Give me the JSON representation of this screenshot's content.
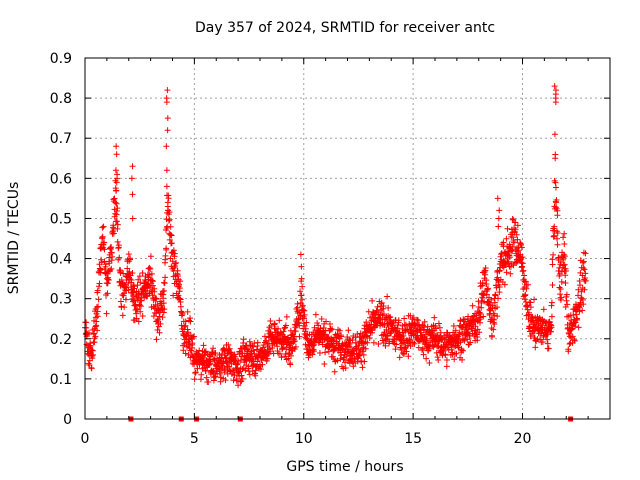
{
  "chart_data": {
    "type": "scatter",
    "title": "Day 357 of 2024, SRMTID for receiver antc",
    "xlabel": "GPS time / hours",
    "ylabel": "SRMTID / TECUs",
    "xlim": [
      0,
      24
    ],
    "ylim": [
      0,
      0.9
    ],
    "xticks": [
      0,
      5,
      10,
      15,
      20
    ],
    "xtick_labels": [
      "0",
      "5",
      "10",
      "15",
      "20"
    ],
    "yticks": [
      0,
      0.1,
      0.2,
      0.3,
      0.4,
      0.5,
      0.6,
      0.7,
      0.8,
      0.9
    ],
    "ytick_labels": [
      "0",
      "0.1",
      "0.2",
      "0.3",
      "0.4",
      "0.5",
      "0.6",
      "0.7",
      "0.8",
      "0.9"
    ],
    "grid": true,
    "marker": "+",
    "color": "#ff0000",
    "data_gap_markers_hours": [
      2.1,
      4.4,
      5.1,
      7.1,
      22.2
    ],
    "trend_hours": [
      0,
      0.3,
      0.6,
      0.8,
      1.0,
      1.2,
      1.4,
      1.6,
      1.8,
      2.0,
      2.2,
      2.5,
      2.8,
      3.0,
      3.3,
      3.6,
      3.8,
      4.0,
      4.2,
      4.5,
      4.8,
      5.0,
      5.5,
      6.0,
      6.5,
      7.0,
      7.5,
      8.0,
      8.5,
      9.0,
      9.5,
      9.9,
      10.2,
      10.6,
      11.0,
      11.5,
      12.0,
      12.5,
      13.0,
      13.5,
      14.0,
      14.5,
      15.0,
      15.5,
      16.0,
      16.5,
      17.0,
      17.5,
      18.0,
      18.3,
      18.6,
      19.0,
      19.4,
      19.7,
      20.0,
      20.3,
      20.6,
      21.0,
      21.3,
      21.5,
      21.7,
      21.9,
      22.1,
      22.4,
      22.7,
      22.9
    ],
    "trend_srmtid": [
      0.22,
      0.15,
      0.3,
      0.47,
      0.32,
      0.42,
      0.58,
      0.35,
      0.3,
      0.38,
      0.3,
      0.3,
      0.33,
      0.36,
      0.25,
      0.3,
      0.55,
      0.38,
      0.37,
      0.22,
      0.2,
      0.15,
      0.14,
      0.13,
      0.15,
      0.13,
      0.16,
      0.15,
      0.2,
      0.2,
      0.18,
      0.3,
      0.17,
      0.22,
      0.2,
      0.18,
      0.18,
      0.17,
      0.22,
      0.25,
      0.22,
      0.2,
      0.22,
      0.2,
      0.2,
      0.18,
      0.2,
      0.22,
      0.25,
      0.35,
      0.24,
      0.38,
      0.42,
      0.45,
      0.38,
      0.25,
      0.23,
      0.22,
      0.22,
      0.6,
      0.33,
      0.42,
      0.2,
      0.25,
      0.33,
      0.36
    ],
    "spikes": [
      {
        "hour": 1.45,
        "values": [
          0.68,
          0.66,
          0.62,
          0.61,
          0.6,
          0.59,
          0.57
        ]
      },
      {
        "hour": 2.15,
        "values": [
          0.63,
          0.6,
          0.56,
          0.5
        ]
      },
      {
        "hour": 3.75,
        "values": [
          0.82,
          0.8,
          0.79,
          0.75,
          0.72,
          0.68,
          0.62,
          0.58,
          0.54
        ]
      },
      {
        "hour": 9.9,
        "values": [
          0.41,
          0.38,
          0.35,
          0.33
        ]
      },
      {
        "hour": 18.9,
        "values": [
          0.55,
          0.52,
          0.5,
          0.48
        ]
      },
      {
        "hour": 21.5,
        "values": [
          0.83,
          0.82,
          0.81,
          0.8,
          0.79,
          0.71,
          0.65,
          0.54,
          0.53
        ]
      }
    ],
    "point_count": 2200,
    "noise_band": 0.06
  }
}
